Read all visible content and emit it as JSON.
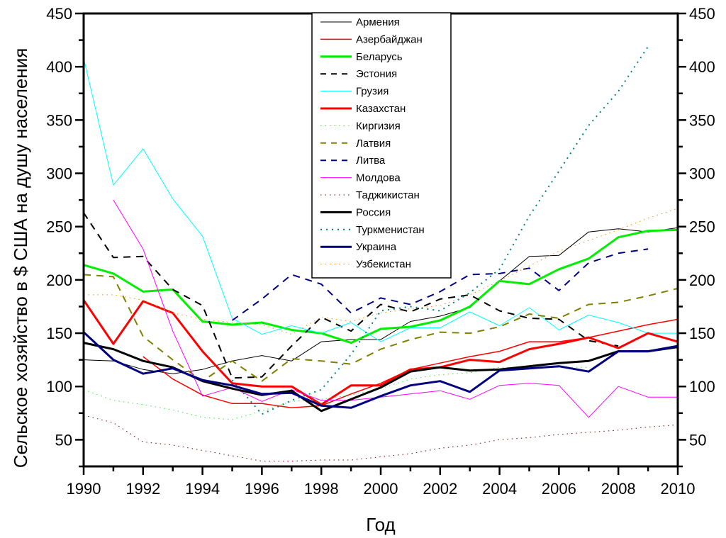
{
  "chart_data": {
    "type": "line",
    "title": "",
    "xlabel": "Год",
    "ylabel": "Сельское хозяйство в $ США на душу населения",
    "xlim": [
      1990,
      2010
    ],
    "ylim": [
      25,
      450
    ],
    "x_ticks": [
      1990,
      1992,
      1994,
      1996,
      1998,
      2000,
      2002,
      2004,
      2006,
      2008,
      2010
    ],
    "y_ticks": [
      50,
      100,
      150,
      200,
      250,
      300,
      350,
      400,
      450
    ],
    "right_axis_mirrored": true,
    "grid": false,
    "legend_position": "top-center",
    "x": [
      1990,
      1991,
      1992,
      1993,
      1994,
      1995,
      1996,
      1997,
      1998,
      1999,
      2000,
      2001,
      2002,
      2003,
      2004,
      2005,
      2006,
      2007,
      2008,
      2009,
      2010
    ],
    "series": [
      {
        "name": "Армения",
        "color": "#000000",
        "style": "solid",
        "width": 1,
        "values": [
          125,
          124,
          116,
          112,
          116,
          124,
          129,
          124,
          142,
          144,
          144,
          161,
          166,
          174,
          199,
          222,
          223,
          245,
          248,
          245,
          249
        ]
      },
      {
        "name": "Азербайджан",
        "color": "#ff0000",
        "style": "solid",
        "width": 1.5,
        "values": [
          null,
          null,
          128,
          107,
          92,
          84,
          84,
          80,
          82,
          93,
          103,
          116,
          122,
          128,
          133,
          142,
          142,
          146,
          152,
          158,
          163
        ]
      },
      {
        "name": "Беларусь",
        "color": "#00ee00",
        "style": "solid",
        "width": 3,
        "values": [
          214,
          206,
          189,
          191,
          161,
          158,
          160,
          153,
          150,
          141,
          154,
          156,
          162,
          175,
          199,
          196,
          210,
          220,
          240,
          246,
          247
        ]
      },
      {
        "name": "Эстония",
        "color": "#000000",
        "style": "dash",
        "width": 2,
        "values": [
          263,
          221,
          222,
          191,
          176,
          108,
          109,
          138,
          165,
          152,
          177,
          170,
          182,
          186,
          171,
          164,
          163,
          143,
          138,
          null,
          null
        ]
      },
      {
        "name": "Грузия",
        "color": "#00ffff",
        "style": "solid",
        "width": 1,
        "values": [
          408,
          289,
          323,
          276,
          241,
          164,
          149,
          157,
          150,
          160,
          142,
          155,
          155,
          170,
          157,
          174,
          153,
          167,
          160,
          150,
          150
        ]
      },
      {
        "name": "Казахстан",
        "color": "#ff0000",
        "style": "solid",
        "width": 3,
        "values": [
          181,
          140,
          180,
          169,
          133,
          103,
          100,
          100,
          83,
          101,
          101,
          116,
          118,
          125,
          123,
          135,
          140,
          146,
          136,
          150,
          142
        ]
      },
      {
        "name": "Киргизия",
        "color": "#33ee33",
        "style": "dot",
        "width": 1,
        "values": [
          97,
          87,
          83,
          78,
          71,
          69,
          77,
          86,
          88,
          92,
          98,
          107,
          111,
          113,
          118,
          118,
          118,
          118,
          null,
          null,
          null
        ]
      },
      {
        "name": "Латвия",
        "color": "#808000",
        "style": "dash",
        "width": 2,
        "values": [
          205,
          203,
          147,
          125,
          105,
          124,
          105,
          126,
          124,
          121,
          135,
          144,
          151,
          150,
          156,
          168,
          164,
          177,
          179,
          185,
          192
        ]
      },
      {
        "name": "Литва",
        "color": "#000080",
        "style": "dash",
        "width": 2,
        "values": [
          null,
          null,
          null,
          null,
          null,
          162,
          182,
          205,
          196,
          169,
          183,
          177,
          189,
          205,
          206,
          211,
          190,
          216,
          225,
          229,
          null
        ]
      },
      {
        "name": "Молдова",
        "color": "#ff00ff",
        "style": "solid",
        "width": 1,
        "values": [
          null,
          275,
          229,
          152,
          91,
          99,
          86,
          97,
          87,
          87,
          90,
          93,
          96,
          88,
          101,
          103,
          101,
          71,
          100,
          90,
          90
        ]
      },
      {
        "name": "Таджикистан",
        "color": "#800000",
        "style": "dot",
        "width": 1,
        "values": [
          73,
          66,
          48,
          45,
          40,
          35,
          30,
          30,
          31,
          31,
          34,
          37,
          42,
          45,
          50,
          52,
          55,
          57,
          59,
          62,
          64
        ]
      },
      {
        "name": "Россия",
        "color": "#000000",
        "style": "solid",
        "width": 3,
        "values": [
          141,
          135,
          124,
          118,
          105,
          98,
          92,
          96,
          77,
          88,
          99,
          114,
          118,
          115,
          116,
          119,
          122,
          124,
          133,
          133,
          137
        ]
      },
      {
        "name": "Туркменистан",
        "color": "#008080",
        "style": "dot",
        "width": 2,
        "values": [
          null,
          null,
          null,
          null,
          null,
          106,
          74,
          87,
          97,
          130,
          171,
          175,
          171,
          188,
          210,
          260,
          302,
          345,
          377,
          419,
          null
        ]
      },
      {
        "name": "Украина",
        "color": "#000080",
        "style": "solid",
        "width": 3,
        "values": [
          151,
          125,
          112,
          117,
          106,
          101,
          93,
          94,
          82,
          80,
          91,
          101,
          105,
          95,
          115,
          117,
          119,
          114,
          133,
          133,
          138
        ]
      },
      {
        "name": "Узбекистан",
        "color": "#ff8c00",
        "style": "dot",
        "width": 1,
        "values": [
          186,
          186,
          181,
          169,
          163,
          160,
          158,
          149,
          165,
          161,
          169,
          173,
          176,
          186,
          199,
          213,
          227,
          237,
          247,
          258,
          267
        ]
      }
    ]
  }
}
